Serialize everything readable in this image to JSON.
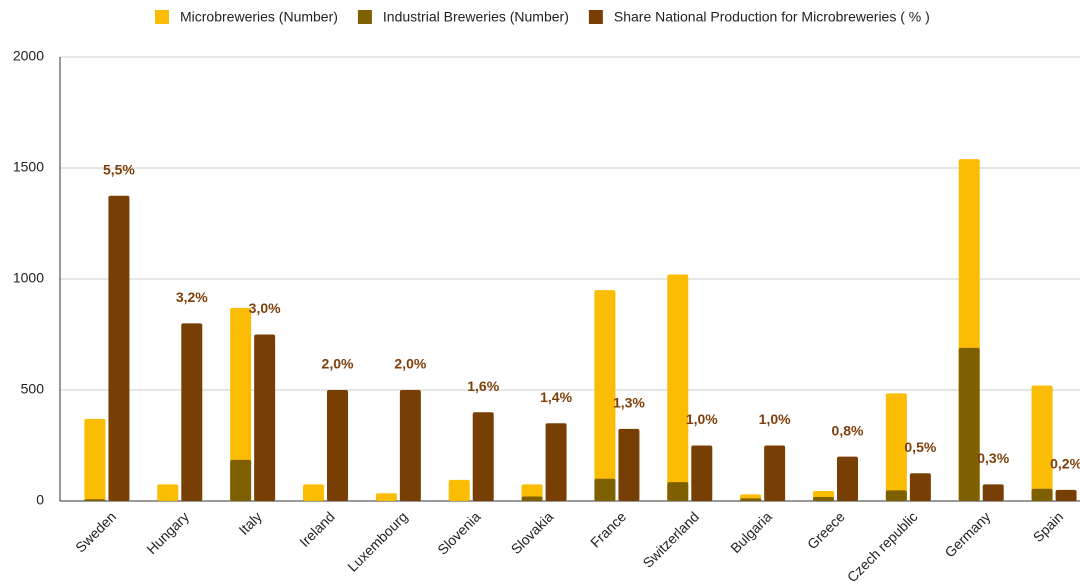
{
  "chart_data": {
    "type": "bar",
    "categories": [
      "Sweden",
      "Hungary",
      "Italy",
      "Ireland",
      "Luxembourg",
      "Slovenia",
      "Slovakia",
      "France",
      "Switzerland",
      "Bulgaria",
      "Greece",
      "Czech republic",
      "Germany",
      "Spain"
    ],
    "series": [
      {
        "name": "Microbreweries (Number)",
        "color": "#fbbc04",
        "values": [
          370,
          75,
          870,
          75,
          35,
          95,
          75,
          950,
          1020,
          30,
          45,
          485,
          1540,
          520
        ]
      },
      {
        "name": "Industrial Breweries (Number)",
        "color": "#7f6000",
        "values": [
          8,
          0,
          185,
          0,
          0,
          0,
          20,
          100,
          85,
          12,
          18,
          48,
          690,
          55
        ]
      },
      {
        "name": "Share National Production for Microbreweries ( % )",
        "color": "#783f04",
        "axis": "y2",
        "values": [
          5.5,
          3.2,
          3.0,
          2.0,
          2.0,
          1.6,
          1.4,
          1.3,
          1.0,
          1.0,
          0.8,
          0.5,
          0.3,
          0.2
        ],
        "value_labels": [
          "5,5%",
          "3,2%",
          "3,0%",
          "2,0%",
          "2,0%",
          "1,6%",
          "1,4%",
          "1,3%",
          "1,0%",
          "1,0%",
          "0,8%",
          "0,5%",
          "0,3%",
          "0,2%"
        ]
      }
    ],
    "ylim": [
      0,
      2000
    ],
    "yticks": [
      0,
      500,
      1000,
      1500,
      2000
    ],
    "y2lim": [
      0,
      8
    ],
    "grid": true,
    "legend": "top"
  }
}
